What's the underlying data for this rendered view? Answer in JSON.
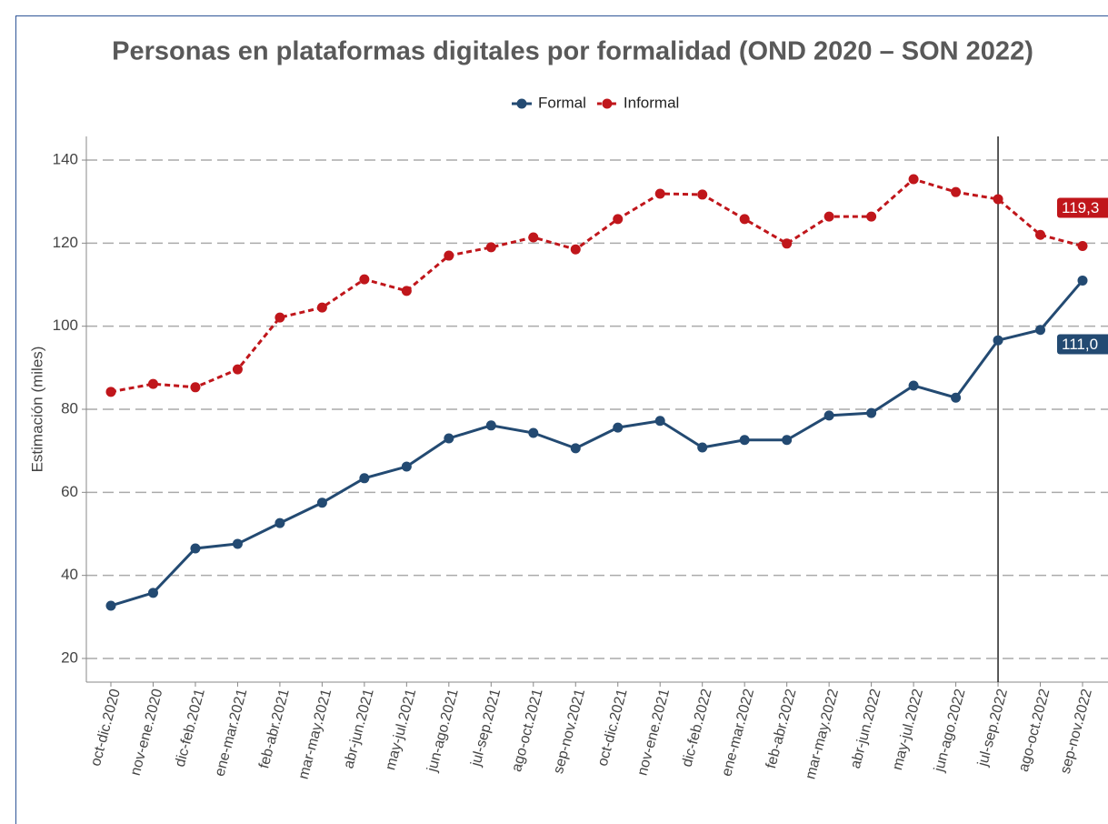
{
  "chart_data": {
    "type": "line",
    "title": "Personas en plataformas digitales por formalidad (OND 2020 – SON 2022)",
    "y_label": "Estimación (miles)",
    "categories": [
      "oct-dic.2020",
      "nov-ene.2020",
      "dic-feb.2021",
      "ene-mar.2021",
      "feb-abr.2021",
      "mar-may.2021",
      "abr-jun.2021",
      "may-jul.2021",
      "jun-ago.2021",
      "jul-sep.2021",
      "ago-oct.2021",
      "sep-nov.2021",
      "oct-dic.2021",
      "nov-ene.2021",
      "dic-feb.2022",
      "ene-mar.2022",
      "feb-abr.2022",
      "mar-may.2022",
      "abr-jun.2022",
      "may-jul.2022",
      "jun-ago.2022",
      "jul-sep.2022",
      "ago-oct.2022",
      "sep-nov.2022"
    ],
    "series": [
      {
        "name": "Formal",
        "color": "#234a72",
        "dash": false,
        "values": [
          32.7,
          35.8,
          46.5,
          47.6,
          52.6,
          57.5,
          63.4,
          66.2,
          73.0,
          76.1,
          74.3,
          70.6,
          75.6,
          77.2,
          70.8,
          72.6,
          72.6,
          78.5,
          79.1,
          85.7,
          82.8,
          96.6,
          99.1,
          111.0
        ],
        "value_labels": [
          null,
          null,
          null,
          null,
          null,
          null,
          null,
          null,
          null,
          null,
          null,
          null,
          null,
          null,
          null,
          null,
          null,
          null,
          null,
          null,
          null,
          null,
          null,
          "111,0"
        ]
      },
      {
        "name": "Informal",
        "color": "#c0161b",
        "dash": true,
        "values": [
          84.2,
          86.1,
          85.3,
          89.6,
          102.1,
          104.5,
          111.3,
          108.5,
          117.0,
          119.0,
          121.4,
          118.5,
          125.8,
          131.9,
          131.7,
          125.8,
          119.9,
          126.4,
          126.4,
          135.4,
          132.3,
          130.6,
          122.0,
          119.3
        ],
        "value_labels": [
          null,
          null,
          null,
          null,
          null,
          null,
          null,
          null,
          null,
          null,
          null,
          null,
          null,
          null,
          null,
          null,
          null,
          null,
          null,
          null,
          null,
          null,
          null,
          "119,3"
        ]
      }
    ],
    "ylim": [
      14.3,
      145.7
    ],
    "yticks": [
      20,
      40,
      60,
      80,
      100,
      120,
      140
    ],
    "grid": true,
    "legend": "top",
    "vline_at": "jul-sep.2022"
  }
}
